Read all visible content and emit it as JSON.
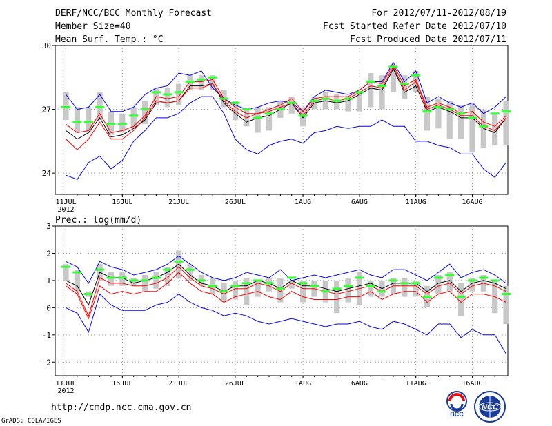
{
  "header": {
    "title": "DERF/NCC/BCC Monthly Forecast",
    "member_size": "Member Size=40",
    "variable": "Mean Surf. Temp.: °C",
    "period": "For 2012/07/11-2012/08/19",
    "started": "Fcst Started Refer Date 2012/07/10",
    "produced": "Fcst Produced Date 2012/07/11"
  },
  "footer": {
    "url": "http://cmdp.ncc.cma.gov.cn",
    "grads": "GrADS: COLA/IGES"
  },
  "logos": {
    "bcc": "BCC",
    "ncc": "NCC"
  },
  "colors": {
    "envelope": "#0000ff",
    "mean": "#000000",
    "member": "#ff0000",
    "bar": "#c8c8c8",
    "observed": "#33ff33"
  },
  "chart_data": [
    {
      "type": "line",
      "name": "temperature",
      "title": "Mean Surf. Temp.: °C",
      "ylim": [
        23,
        30
      ],
      "yticks": [
        "24",
        "27",
        "30"
      ],
      "year_label": "2012",
      "xtick_labels": [
        "11JUL",
        "16JUL",
        "21JUL",
        "26JUL",
        "1AUG",
        "6AUG",
        "11AUG",
        "16AUG"
      ],
      "xtick_days": [
        1,
        6,
        11,
        16,
        22,
        27,
        32,
        37
      ],
      "days": 40,
      "series": [
        {
          "name": "ensemble max",
          "values": [
            27.7,
            27.0,
            27.1,
            27.7,
            26.9,
            26.9,
            27.1,
            27.7,
            28.0,
            28.1,
            28.7,
            28.6,
            28.8,
            28.0,
            27.5,
            27.2,
            27.0,
            27.1,
            27.3,
            27.4,
            27.3,
            26.9,
            27.6,
            27.9,
            27.8,
            27.7,
            27.9,
            28.3,
            28.3,
            29.2,
            28.3,
            28.8,
            27.3,
            27.6,
            27.3,
            27.1,
            27.3,
            26.8,
            27.1,
            27.6
          ]
        },
        {
          "name": "ensemble mean",
          "values": [
            26.0,
            25.6,
            25.9,
            26.6,
            25.7,
            25.8,
            26.1,
            26.5,
            27.3,
            27.3,
            27.4,
            28.1,
            28.1,
            28.2,
            27.3,
            26.8,
            26.4,
            26.6,
            26.7,
            27.0,
            27.3,
            26.6,
            27.3,
            27.4,
            27.3,
            27.4,
            27.7,
            28.0,
            27.9,
            28.9,
            27.8,
            28.1,
            26.9,
            27.1,
            26.9,
            26.6,
            26.6,
            26.1,
            25.9,
            26.6
          ]
        },
        {
          "name": "member",
          "values": [
            25.6,
            25.1,
            25.6,
            26.4,
            25.6,
            25.6,
            26.0,
            26.6,
            27.4,
            27.3,
            27.4,
            28.0,
            28.0,
            28.2,
            27.4,
            26.9,
            26.6,
            26.8,
            26.9,
            27.1,
            27.3,
            26.7,
            27.4,
            27.5,
            27.4,
            27.5,
            27.8,
            28.1,
            28.0,
            29.0,
            27.9,
            28.3,
            27.0,
            27.2,
            27.0,
            26.7,
            26.7,
            26.2,
            26.0,
            26.6
          ]
        },
        {
          "name": "member",
          "values": [
            26.3,
            25.9,
            26.0,
            26.8,
            25.9,
            26.0,
            26.2,
            26.7,
            27.6,
            27.5,
            27.6,
            28.3,
            28.3,
            28.4,
            27.5,
            27.1,
            26.8,
            26.8,
            27.0,
            27.2,
            27.5,
            26.9,
            27.5,
            27.6,
            27.6,
            27.6,
            27.9,
            28.3,
            28.2,
            29.1,
            28.1,
            28.4,
            27.1,
            27.3,
            27.1,
            26.8,
            26.9,
            26.4,
            26.2,
            26.7
          ]
        },
        {
          "name": "ensemble min",
          "values": [
            23.9,
            23.7,
            24.5,
            24.8,
            24.2,
            24.6,
            25.5,
            26.0,
            26.6,
            26.6,
            26.8,
            27.3,
            27.6,
            27.6,
            26.8,
            25.6,
            25.1,
            24.9,
            25.3,
            25.5,
            25.6,
            25.4,
            25.9,
            26.0,
            26.2,
            26.1,
            26.2,
            26.2,
            26.5,
            26.2,
            26.2,
            25.5,
            25.5,
            25.3,
            25.2,
            24.9,
            24.9,
            24.2,
            23.8,
            24.5
          ]
        }
      ],
      "bars": {
        "low": [
          26.5,
          25.9,
          25.9,
          26.5,
          25.8,
          25.9,
          26.1,
          26.3,
          27.2,
          27.1,
          27.2,
          27.9,
          27.9,
          27.9,
          27.1,
          26.5,
          26.2,
          25.9,
          26.0,
          26.6,
          26.8,
          26.2,
          27.0,
          27.0,
          27.0,
          26.9,
          26.9,
          27.1,
          27.0,
          27.8,
          27.5,
          27.8,
          26.0,
          26.1,
          25.6,
          25.6,
          25.0,
          25.2,
          25.3,
          25.3
        ],
        "high": [
          27.8,
          27.1,
          27.1,
          27.8,
          26.9,
          26.8,
          27.1,
          27.4,
          28.0,
          28.0,
          28.2,
          28.6,
          28.6,
          28.6,
          27.9,
          27.4,
          27.0,
          27.1,
          27.1,
          27.4,
          27.6,
          27.1,
          27.6,
          27.8,
          27.7,
          27.6,
          27.8,
          28.7,
          28.6,
          29.0,
          28.6,
          28.8,
          27.6,
          27.5,
          27.4,
          27.2,
          27.3,
          27.0,
          26.8,
          27.4
        ]
      },
      "observed": [
        27.1,
        26.4,
        26.4,
        27.1,
        26.3,
        26.3,
        26.7,
        27.0,
        27.8,
        27.7,
        27.8,
        28.3,
        28.4,
        28.5,
        27.5,
        27.3,
        27.0,
        26.6,
        26.8,
        27.0,
        27.3,
        26.7,
        27.4,
        27.5,
        27.4,
        27.5,
        27.8,
        28.3,
        28.1,
        29.0,
        28.2,
        28.6,
        26.9,
        27.1,
        27.0,
        26.8,
        26.6,
        26.2,
        26.8,
        26.9
      ]
    },
    {
      "type": "line",
      "name": "precipitation",
      "title": "Prec.: log(mm/d)",
      "ylim": [
        -2.5,
        3
      ],
      "yticks": [
        "-2",
        "-1",
        "0",
        "1",
        "2",
        "3"
      ],
      "year_label": "2012",
      "xtick_labels": [
        "11JUL",
        "16JUL",
        "21JUL",
        "26JUL",
        "1AUG",
        "6AUG",
        "11AUG",
        "16AUG"
      ],
      "xtick_days": [
        1,
        6,
        11,
        16,
        22,
        27,
        32,
        37
      ],
      "days": 40,
      "series": [
        {
          "name": "ensemble max",
          "values": [
            1.7,
            1.5,
            0.9,
            1.7,
            1.5,
            1.4,
            1.2,
            1.3,
            1.4,
            1.6,
            1.9,
            1.6,
            1.3,
            1.1,
            1.0,
            1.1,
            1.3,
            1.2,
            1.1,
            1.4,
            1.0,
            1.1,
            1.2,
            1.1,
            1.2,
            1.3,
            1.4,
            1.2,
            1.1,
            1.4,
            1.4,
            1.2,
            1.0,
            1.3,
            1.6,
            1.1,
            1.3,
            1.4,
            1.2,
            0.9
          ]
        },
        {
          "name": "ensemble mean",
          "values": [
            1.0,
            0.8,
            0.1,
            1.3,
            1.1,
            1.1,
            0.9,
            1.0,
            1.1,
            1.3,
            1.6,
            1.2,
            0.9,
            0.8,
            0.6,
            0.8,
            0.8,
            1.0,
            0.9,
            0.7,
            1.0,
            0.8,
            0.8,
            0.7,
            0.6,
            0.7,
            0.8,
            0.9,
            0.7,
            0.9,
            0.9,
            0.9,
            0.6,
            0.9,
            1.0,
            0.6,
            0.9,
            1.0,
            0.9,
            0.7
          ]
        },
        {
          "name": "member",
          "values": [
            0.9,
            0.6,
            -0.3,
            1.1,
            0.9,
            0.9,
            0.8,
            0.8,
            0.9,
            1.1,
            1.5,
            1.1,
            0.8,
            0.7,
            0.5,
            0.7,
            0.7,
            0.9,
            0.8,
            0.6,
            0.9,
            0.7,
            0.7,
            0.6,
            0.5,
            0.6,
            0.7,
            0.8,
            0.6,
            0.8,
            0.8,
            0.8,
            0.5,
            0.8,
            0.9,
            0.5,
            0.8,
            0.9,
            0.8,
            0.6
          ]
        },
        {
          "name": "member",
          "values": [
            0.8,
            0.5,
            -0.4,
            0.8,
            0.5,
            0.6,
            0.5,
            0.6,
            0.6,
            0.9,
            1.3,
            0.9,
            0.6,
            0.5,
            0.2,
            0.4,
            0.5,
            0.6,
            0.4,
            0.3,
            0.6,
            0.4,
            0.3,
            0.3,
            0.3,
            0.4,
            0.4,
            0.6,
            0.3,
            0.5,
            0.6,
            0.6,
            0.2,
            0.5,
            0.6,
            0.2,
            0.5,
            0.5,
            0.4,
            0.2
          ]
        },
        {
          "name": "ensemble min",
          "values": [
            0.0,
            -0.2,
            -0.9,
            0.5,
            0.1,
            -0.1,
            -0.1,
            -0.1,
            0.1,
            0.2,
            0.5,
            0.2,
            0.0,
            -0.1,
            -0.3,
            -0.2,
            -0.3,
            -0.5,
            -0.6,
            -0.5,
            -0.4,
            -0.5,
            -0.6,
            -0.7,
            -0.6,
            -0.6,
            -0.5,
            -0.7,
            -0.8,
            -0.5,
            -0.6,
            -0.8,
            -1.0,
            -0.6,
            -0.6,
            -1.1,
            -0.8,
            -1.0,
            -1.0,
            -1.7
          ]
        }
      ],
      "bars": {
        "low": [
          1.0,
          0.6,
          0.4,
          1.0,
          0.8,
          0.8,
          0.8,
          0.6,
          0.7,
          0.8,
          1.1,
          1.0,
          0.8,
          0.5,
          0.2,
          0.3,
          0.1,
          0.4,
          0.6,
          0.2,
          0.7,
          0.2,
          0.4,
          0.2,
          -0.2,
          0.2,
          0.1,
          0.4,
          0.4,
          0.5,
          0.4,
          0.4,
          0.0,
          0.5,
          0.6,
          -0.3,
          0.6,
          0.6,
          -0.2,
          -0.6
        ],
        "high": [
          1.6,
          1.4,
          0.6,
          1.6,
          1.3,
          1.3,
          1.1,
          1.2,
          1.3,
          1.5,
          2.1,
          1.6,
          1.2,
          1.1,
          0.9,
          1.0,
          1.1,
          1.0,
          1.1,
          1.1,
          1.0,
          1.0,
          1.0,
          1.0,
          1.0,
          1.1,
          1.3,
          1.0,
          1.0,
          1.1,
          1.1,
          1.0,
          0.8,
          1.2,
          1.3,
          0.9,
          1.1,
          1.2,
          1.0,
          0.8
        ]
      },
      "observed": [
        1.5,
        1.3,
        0.5,
        1.4,
        1.1,
        1.1,
        1.0,
        1.0,
        1.1,
        1.4,
        1.7,
        1.4,
        1.0,
        0.8,
        0.6,
        0.8,
        0.9,
        1.0,
        0.9,
        0.7,
        1.1,
        0.9,
        0.8,
        0.6,
        0.7,
        0.8,
        1.1,
        0.8,
        0.6,
        1.0,
        0.9,
        0.9,
        0.4,
        1.1,
        1.2,
        0.4,
        1.0,
        1.1,
        1.0,
        0.5
      ]
    }
  ]
}
